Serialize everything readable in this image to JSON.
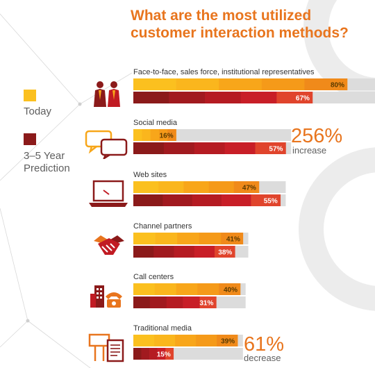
{
  "title_line1": "What are the most utilized",
  "title_line2": "customer interaction methods?",
  "legend": {
    "today": "Today",
    "prediction_line1": "3–5 Year",
    "prediction_line2": "Prediction"
  },
  "colors": {
    "today": "#f7a619",
    "today_light": "#fbc01f",
    "prediction": "#c11b23",
    "prediction_dark": "#8b1a1a",
    "track": "#dcdcdc",
    "accent": "#e8751e"
  },
  "annotations": [
    {
      "value": "256%",
      "text": "increase"
    },
    {
      "value": "61%",
      "text": "decrease"
    }
  ],
  "chart_data": {
    "type": "bar",
    "title": "What are the most utilized customer interaction methods?",
    "categories": [
      "Face-to-face, sales force, institutional representatives",
      "Social media",
      "Web sites",
      "Channel partners",
      "Call centers",
      "Traditional media"
    ],
    "series": [
      {
        "name": "Today",
        "values": [
          80,
          16,
          47,
          41,
          40,
          39
        ],
        "labels": [
          "80%",
          "16%",
          "47%",
          "41%",
          "40%",
          "39%"
        ]
      },
      {
        "name": "3–5 Year Prediction",
        "values": [
          67,
          57,
          55,
          38,
          31,
          15
        ],
        "labels": [
          "67%",
          "57%",
          "55%",
          "38%",
          "31%",
          "15%"
        ]
      }
    ],
    "xlim": [
      0,
      100
    ]
  }
}
